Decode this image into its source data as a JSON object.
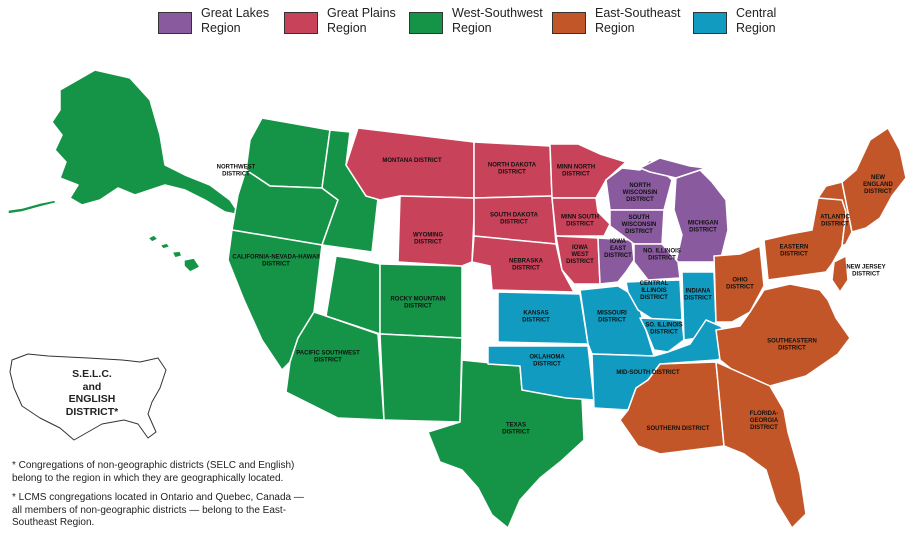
{
  "colors": {
    "great_lakes": "#8a5a9e",
    "great_plains": "#c8435a",
    "west_southwest": "#159447",
    "east_southeast": "#c35628",
    "central": "#129bc0",
    "border": "#ffffff"
  },
  "legend": [
    {
      "label": "Great Lakes\nRegion",
      "color": "#8a5a9e"
    },
    {
      "label": "Great Plains\nRegion",
      "color": "#c8435a"
    },
    {
      "label": "West-Southwest\nRegion",
      "color": "#159447"
    },
    {
      "label": "East-Southeast\nRegion",
      "color": "#c35628"
    },
    {
      "label": "Central\nRegion",
      "color": "#129bc0"
    }
  ],
  "districts": {
    "northwest": "NORTHWEST\nDISTRICT",
    "california_nevada_hawaii": "CALIFORNIA-NEVADA-HAWAII\nDISTRICT",
    "pacific_southwest": "PACIFIC SOUTHWEST\nDISTRICT",
    "rocky_mountain": "ROCKY MOUNTAIN\nDISTRICT",
    "texas": "TEXAS\nDISTRICT",
    "montana": "MONTANA DISTRICT",
    "wyoming": "WYOMING\nDISTRICT",
    "north_dakota": "NORTH DAKOTA\nDISTRICT",
    "south_dakota": "SOUTH DAKOTA\nDISTRICT",
    "nebraska": "NEBRASKA\nDISTRICT",
    "minn_north": "MINN NORTH\nDISTRICT",
    "minn_south": "MINN SOUTH\nDISTRICT",
    "iowa_west": "IOWA\nWEST\nDISTRICT",
    "iowa_east": "IOWA\nEAST\nDISTRICT",
    "north_wisconsin": "NORTH\nWISCONSIN\nDISTRICT",
    "south_wisconsin": "SOUTH\nWISCONSIN\nDISTRICT",
    "michigan": "MICHIGAN\nDISTRICT",
    "no_illinois": "NO. ILLINOIS\nDISTRICT",
    "kansas": "KANSAS\nDISTRICT",
    "missouri": "MISSOURI\nDISTRICT",
    "oklahoma": "OKLAHOMA\nDISTRICT",
    "central_illinois": "CENTRAL\nILLINOIS\nDISTRICT",
    "so_illinois": "SO. ILLINOIS\nDISTRICT",
    "indiana": "INDIANA\nDISTRICT",
    "mid_south": "MID-SOUTH DISTRICT",
    "ohio": "OHIO\nDISTRICT",
    "eastern": "EASTERN\nDISTRICT",
    "atlantic": "ATLANTIC\nDISTRICT",
    "new_england": "NEW\nENGLAND\nDISTRICT",
    "new_jersey": "NEW JERSEY\nDISTRICT",
    "southeastern": "SOUTHEASTERN\nDISTRICT",
    "southern": "SOUTHERN DISTRICT",
    "florida_georgia": "FLORIDA-\nGEORGIA\nDISTRICT"
  },
  "inset_label": "S.E.L.C.\nand\nENGLISH\nDISTRICT*",
  "footnotes": [
    "* Congregations of non-geographic districts (SELC and English) belong to the region in which they are geographically located.",
    "* LCMS congregations located in Ontario and Quebec, Canada — all members of non-geographic districts — belong to the East-Southeast Region."
  ]
}
